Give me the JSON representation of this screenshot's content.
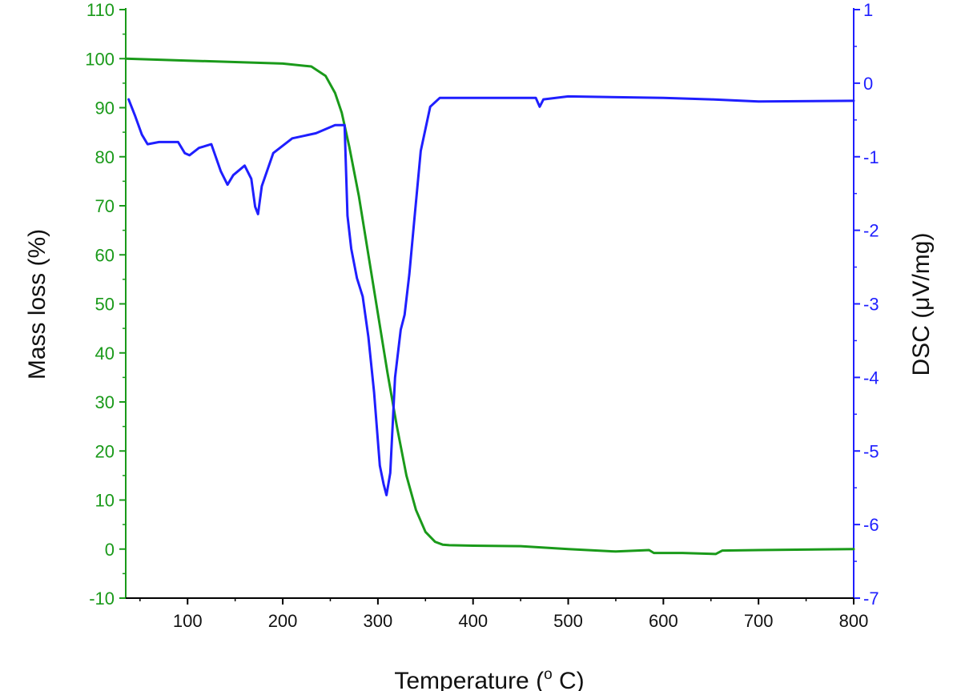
{
  "chart_data": {
    "type": "line",
    "xlabel": "Temperature (",
    "xlabel_sup": "o",
    "xlabel_suffix": " C)",
    "ylabel": "Mass loss (%)",
    "y2label": "DSC (μV/mg)",
    "xlim": [
      35,
      800
    ],
    "ylim": [
      -10,
      110
    ],
    "y2lim": [
      -7,
      1
    ],
    "x_ticks": [
      100,
      200,
      300,
      400,
      500,
      600,
      700,
      800
    ],
    "y_ticks": [
      -10,
      0,
      10,
      20,
      30,
      40,
      50,
      60,
      70,
      80,
      90,
      100,
      110
    ],
    "y2_ticks": [
      -7,
      -6,
      -5,
      -4,
      -3,
      -2,
      -1,
      0,
      1
    ],
    "grid": false,
    "colors": {
      "mass": "#1a9a1a",
      "dsc": "#1f1fff",
      "bottom_axis": "#000000"
    },
    "series": [
      {
        "axis": "left",
        "color": "#1a9a1a",
        "x": [
          35,
          100,
          150,
          200,
          230,
          245,
          255,
          262,
          270,
          280,
          290,
          300,
          310,
          320,
          330,
          340,
          350,
          360,
          368,
          375,
          400,
          450,
          500,
          550,
          585,
          590,
          620,
          655,
          662,
          700,
          800
        ],
        "y": [
          100,
          99.6,
          99.3,
          99,
          98.4,
          96.5,
          93,
          89,
          82,
          72,
          60,
          48,
          36,
          25,
          15,
          8,
          3.5,
          1.5,
          0.9,
          0.8,
          0.7,
          0.6,
          0,
          -0.5,
          -0.2,
          -0.8,
          -0.8,
          -1.0,
          -0.3,
          -0.2,
          0
        ]
      },
      {
        "axis": "right",
        "color": "#1f1fff",
        "x": [
          38,
          45,
          52,
          58,
          70,
          90,
          97,
          102,
          112,
          125,
          135,
          142,
          148,
          160,
          167,
          171,
          174,
          178,
          190,
          210,
          235,
          255,
          265,
          268,
          272,
          278,
          284,
          290,
          296,
          302,
          306,
          309,
          313,
          318,
          324,
          328,
          333,
          338,
          345,
          355,
          365,
          380,
          420,
          466,
          470,
          474,
          500,
          600,
          650,
          700,
          800
        ],
        "y": [
          -0.22,
          -0.45,
          -0.7,
          -0.83,
          -0.8,
          -0.8,
          -0.95,
          -0.98,
          -0.88,
          -0.83,
          -1.2,
          -1.38,
          -1.25,
          -1.12,
          -1.3,
          -1.68,
          -1.78,
          -1.4,
          -0.95,
          -0.75,
          -0.68,
          -0.57,
          -0.57,
          -1.8,
          -2.25,
          -2.65,
          -2.9,
          -3.45,
          -4.2,
          -5.2,
          -5.45,
          -5.6,
          -5.3,
          -4.0,
          -3.35,
          -3.15,
          -2.6,
          -1.9,
          -0.92,
          -0.32,
          -0.2,
          -0.2,
          -0.2,
          -0.2,
          -0.32,
          -0.22,
          -0.18,
          -0.2,
          -0.22,
          -0.25,
          -0.24
        ]
      }
    ]
  }
}
